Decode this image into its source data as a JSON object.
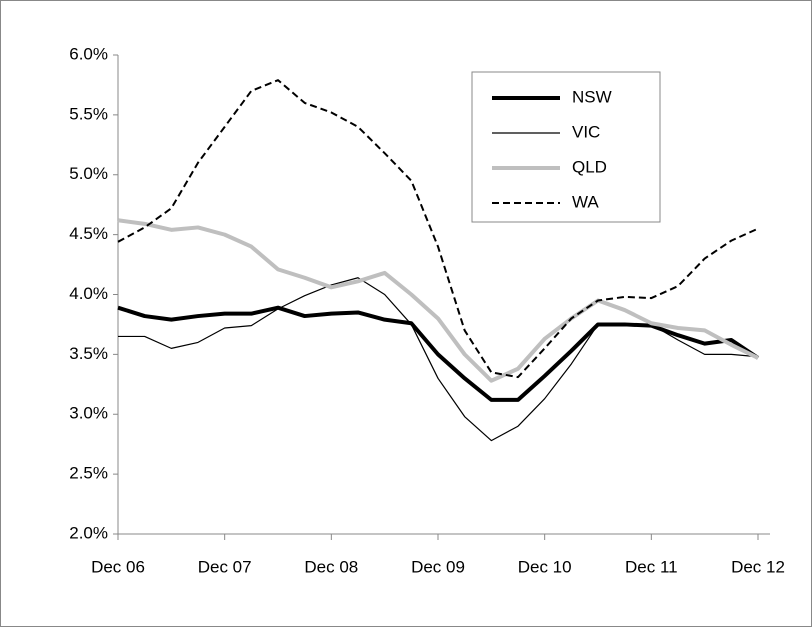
{
  "chart_data": {
    "type": "line",
    "categories": [
      "Dec 06",
      null,
      null,
      null,
      "Dec 07",
      null,
      null,
      null,
      "Dec 08",
      null,
      null,
      null,
      "Dec 09",
      null,
      null,
      null,
      "Dec 10",
      null,
      null,
      null,
      "Dec 11",
      null,
      null,
      null,
      "Dec 12"
    ],
    "series": [
      {
        "name": "NSW",
        "color": "#000000",
        "line_width": 4,
        "line_style": "solid",
        "values": [
          3.89,
          3.82,
          3.79,
          3.82,
          3.84,
          3.84,
          3.89,
          3.82,
          3.84,
          3.85,
          3.79,
          3.76,
          3.5,
          3.3,
          3.12,
          3.12,
          3.32,
          3.53,
          3.75,
          3.75,
          3.74,
          3.66,
          3.59,
          3.62,
          3.47
        ]
      },
      {
        "name": "VIC",
        "color": "#000000",
        "line_width": 1.2,
        "line_style": "solid",
        "values": [
          3.65,
          3.65,
          3.55,
          3.6,
          3.72,
          3.74,
          3.88,
          3.99,
          4.08,
          4.14,
          4.0,
          3.75,
          3.3,
          2.98,
          2.78,
          2.9,
          3.13,
          3.42,
          3.75,
          3.75,
          3.75,
          3.62,
          3.5,
          3.5,
          3.48
        ]
      },
      {
        "name": "QLD",
        "color": "#bfbfbf",
        "line_width": 4,
        "line_style": "solid",
        "values": [
          4.62,
          4.59,
          4.54,
          4.56,
          4.5,
          4.4,
          4.21,
          4.14,
          4.06,
          4.11,
          4.18,
          4.0,
          3.8,
          3.5,
          3.28,
          3.38,
          3.63,
          3.8,
          3.95,
          3.87,
          3.76,
          3.72,
          3.7,
          3.58,
          3.47
        ]
      },
      {
        "name": "WA",
        "color": "#000000",
        "line_width": 2,
        "line_style": "dashed",
        "values": [
          4.44,
          4.56,
          4.72,
          5.1,
          5.4,
          5.7,
          5.79,
          5.6,
          5.52,
          5.4,
          5.18,
          4.95,
          4.4,
          3.7,
          3.35,
          3.31,
          3.55,
          3.8,
          3.95,
          3.98,
          3.97,
          4.07,
          4.3,
          4.45,
          4.55
        ]
      }
    ],
    "ylim": [
      2,
      6
    ],
    "yticks": [
      {
        "value": 2,
        "label": "2.0%"
      },
      {
        "value": 2.5,
        "label": "2.5%"
      },
      {
        "value": 3,
        "label": "3.0%"
      },
      {
        "value": 3.5,
        "label": "3.5%"
      },
      {
        "value": 4,
        "label": "4.0%"
      },
      {
        "value": 4.5,
        "label": "4.5%"
      },
      {
        "value": 5,
        "label": "5.0%"
      },
      {
        "value": 5.5,
        "label": "5.5%"
      },
      {
        "value": 6,
        "label": "6.0%"
      }
    ],
    "grid": false,
    "legend": "top-right"
  }
}
